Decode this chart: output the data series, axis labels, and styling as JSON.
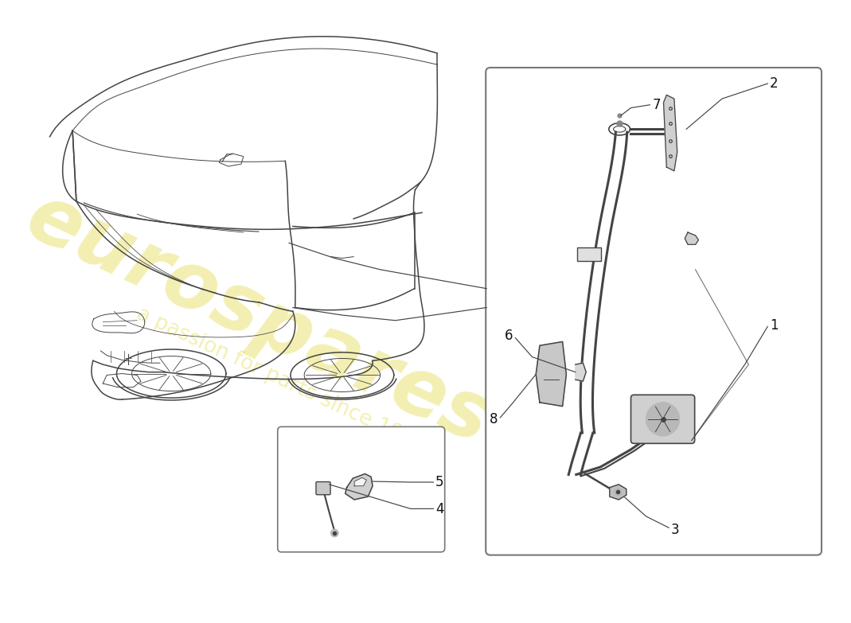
{
  "bg_color": "#ffffff",
  "line_color": "#444444",
  "line_color_light": "#888888",
  "box_border": "#777777",
  "watermark_main": "eurospares",
  "watermark_sub": "a passion for parts since 1985",
  "watermark_color": "#d8cc00",
  "watermark_alpha": 0.3,
  "label_fontsize": 12,
  "label_color": "#111111",
  "part_label_color": "#222222",
  "belt_color": "#555555",
  "part_fill": "#cccccc",
  "part_fill2": "#e0e0e0",
  "bg_part": "#f0f0f0"
}
